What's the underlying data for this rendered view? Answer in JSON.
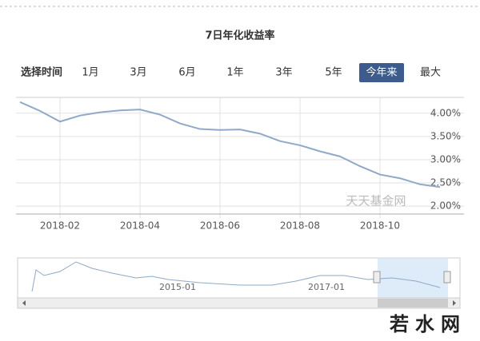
{
  "chart_data": {
    "type": "line",
    "title": "7日年化收益率",
    "range_selector": {
      "label": "选择时间",
      "buttons": [
        "1月",
        "3月",
        "6月",
        "1年",
        "3年",
        "5年",
        "今年来",
        "最大"
      ],
      "selected_index": 6
    },
    "categories": [
      null,
      null,
      "2018-02",
      null,
      null,
      null,
      "2018-04",
      null,
      null,
      null,
      "2018-06",
      null,
      null,
      null,
      "2018-08",
      null,
      null,
      null,
      "2018-10",
      null,
      null,
      null
    ],
    "values": [
      4.24,
      4.05,
      3.82,
      3.95,
      4.02,
      4.06,
      4.08,
      3.97,
      3.78,
      3.66,
      3.64,
      3.65,
      3.56,
      3.4,
      3.31,
      3.18,
      3.07,
      2.86,
      2.68,
      2.6,
      2.47,
      2.41
    ],
    "color": "#8fa9c6",
    "ylim": [
      1.83,
      4.34
    ],
    "yticks": [
      {
        "value": 2,
        "label": "2.00%"
      },
      {
        "value": 2.5,
        "label": "2.50%"
      },
      {
        "value": 3,
        "label": "3.00%"
      },
      {
        "value": 3.5,
        "label": "3.50%"
      },
      {
        "value": 4,
        "label": "4.00%"
      }
    ],
    "grid": true,
    "watermark": "天天基金网",
    "navigator": {
      "labels": [
        "2015-01",
        "2017-01"
      ]
    }
  },
  "site_watermark": "若水网"
}
